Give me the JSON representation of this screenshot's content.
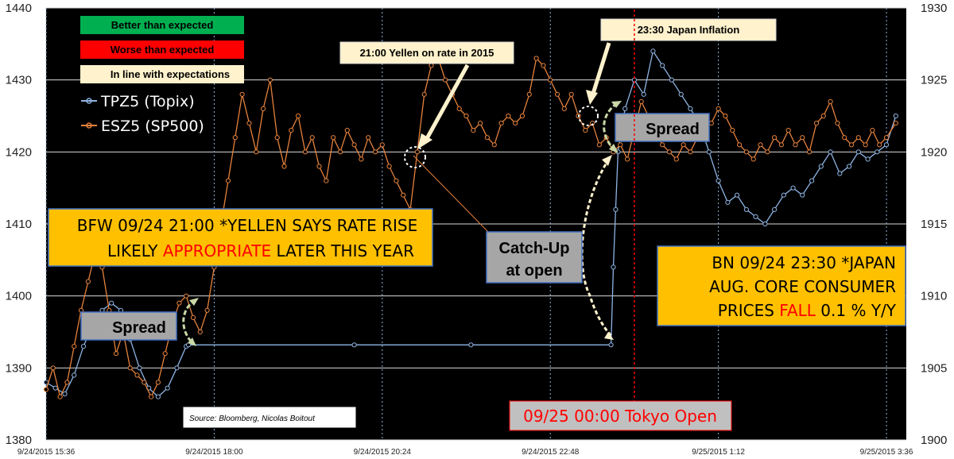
{
  "chart_data": {
    "type": "line",
    "left_axis": {
      "ticks": [
        1380,
        1390,
        1400,
        1410,
        1420,
        1430,
        1440
      ],
      "ylim": [
        1380,
        1440
      ]
    },
    "right_axis": {
      "ticks": [
        1900,
        1905,
        1910,
        1915,
        1920,
        1925,
        1930
      ],
      "ylim": [
        1900,
        1930
      ]
    },
    "x_tick_labels": [
      "9/24/2015 15:36",
      "9/24/2015 18:00",
      "9/24/2015 20:24",
      "9/24/2015 22:48",
      "9/25/2015 1:12",
      "9/25/2015 3:36"
    ],
    "x_range_minutes": [
      936,
      1656
    ],
    "x_tick_minutes": [
      936,
      1080,
      1224,
      1368,
      1512,
      1656
    ],
    "grid": true,
    "background": "#000000",
    "legend": {
      "placement": "top-left",
      "status_items": [
        {
          "label": "Better than expected",
          "color": "#00b050",
          "text_color": "#000000"
        },
        {
          "label": "Worse than expected",
          "color": "#ff0000",
          "text_color": "#000000"
        },
        {
          "label": "In line with expectations",
          "color": "#fff2cc",
          "text_color": "#000000"
        }
      ]
    },
    "series": [
      {
        "name": "TPZ5 (Topix)",
        "axis": "right",
        "color": "#8eb4e3",
        "points": [
          [
            936,
            1904
          ],
          [
            944,
            1903.6
          ],
          [
            952,
            1903.2
          ],
          [
            960,
            1904.5
          ],
          [
            968,
            1906.5
          ],
          [
            976,
            1908
          ],
          [
            984,
            1909
          ],
          [
            992,
            1909.5
          ],
          [
            1000,
            1909
          ],
          [
            1008,
            1907
          ],
          [
            1016,
            1905
          ],
          [
            1024,
            1903.6
          ],
          [
            1032,
            1903
          ],
          [
            1040,
            1903.6
          ],
          [
            1048,
            1905
          ],
          [
            1056,
            1906.5
          ],
          [
            1058,
            1906.6
          ],
          [
            1200,
            1906.6
          ],
          [
            1300,
            1906.6
          ],
          [
            1420,
            1906.6
          ],
          [
            1422,
            1912
          ],
          [
            1424,
            1916
          ],
          [
            1426,
            1920
          ],
          [
            1428,
            1921
          ],
          [
            1432,
            1923
          ],
          [
            1440,
            1925
          ],
          [
            1448,
            1924
          ],
          [
            1456,
            1927
          ],
          [
            1464,
            1926
          ],
          [
            1472,
            1925
          ],
          [
            1480,
            1924
          ],
          [
            1488,
            1923
          ],
          [
            1496,
            1922
          ],
          [
            1504,
            1920
          ],
          [
            1512,
            1918
          ],
          [
            1520,
            1916.5
          ],
          [
            1528,
            1917
          ],
          [
            1536,
            1916
          ],
          [
            1544,
            1915.5
          ],
          [
            1552,
            1915
          ],
          [
            1560,
            1916
          ],
          [
            1568,
            1917
          ],
          [
            1576,
            1917.5
          ],
          [
            1584,
            1917
          ],
          [
            1592,
            1918
          ],
          [
            1600,
            1919
          ],
          [
            1608,
            1920
          ],
          [
            1616,
            1918.5
          ],
          [
            1624,
            1919
          ],
          [
            1632,
            1920
          ],
          [
            1640,
            1919.5
          ],
          [
            1648,
            1920
          ],
          [
            1656,
            1920.5
          ],
          [
            1664,
            1922.5
          ]
        ]
      },
      {
        "name": "ESZ5 (SP500)",
        "axis": "left",
        "color": "#e5823c",
        "points": [
          [
            936,
            1387
          ],
          [
            942,
            1390
          ],
          [
            948,
            1386
          ],
          [
            954,
            1388
          ],
          [
            960,
            1393
          ],
          [
            966,
            1398
          ],
          [
            972,
            1402
          ],
          [
            978,
            1406
          ],
          [
            984,
            1404
          ],
          [
            990,
            1398
          ],
          [
            996,
            1392
          ],
          [
            1002,
            1395
          ],
          [
            1008,
            1390
          ],
          [
            1014,
            1389
          ],
          [
            1020,
            1388
          ],
          [
            1026,
            1386
          ],
          [
            1032,
            1388
          ],
          [
            1038,
            1392
          ],
          [
            1044,
            1396
          ],
          [
            1050,
            1399
          ],
          [
            1056,
            1400
          ],
          [
            1062,
            1397
          ],
          [
            1068,
            1395
          ],
          [
            1074,
            1398
          ],
          [
            1080,
            1404
          ],
          [
            1086,
            1410
          ],
          [
            1092,
            1416
          ],
          [
            1098,
            1422
          ],
          [
            1104,
            1428
          ],
          [
            1110,
            1424
          ],
          [
            1116,
            1420
          ],
          [
            1122,
            1426
          ],
          [
            1128,
            1430
          ],
          [
            1134,
            1422
          ],
          [
            1140,
            1418
          ],
          [
            1146,
            1423
          ],
          [
            1152,
            1425
          ],
          [
            1158,
            1420
          ],
          [
            1164,
            1422
          ],
          [
            1170,
            1418
          ],
          [
            1176,
            1416
          ],
          [
            1182,
            1422
          ],
          [
            1188,
            1420
          ],
          [
            1194,
            1423
          ],
          [
            1200,
            1421
          ],
          [
            1206,
            1419
          ],
          [
            1212,
            1422
          ],
          [
            1218,
            1420
          ],
          [
            1224,
            1421
          ],
          [
            1230,
            1418
          ],
          [
            1236,
            1416
          ],
          [
            1242,
            1414
          ],
          [
            1248,
            1412
          ],
          [
            1254,
            1420
          ],
          [
            1260,
            1428
          ],
          [
            1266,
            1432
          ],
          [
            1272,
            1433
          ],
          [
            1278,
            1430
          ],
          [
            1284,
            1428
          ],
          [
            1290,
            1426
          ],
          [
            1296,
            1425
          ],
          [
            1302,
            1423
          ],
          [
            1308,
            1424
          ],
          [
            1314,
            1422
          ],
          [
            1320,
            1421
          ],
          [
            1326,
            1424
          ],
          [
            1332,
            1425
          ],
          [
            1338,
            1424
          ],
          [
            1344,
            1425
          ],
          [
            1350,
            1428
          ],
          [
            1356,
            1433
          ],
          [
            1362,
            1432
          ],
          [
            1368,
            1430
          ],
          [
            1374,
            1428
          ],
          [
            1380,
            1426
          ],
          [
            1386,
            1428
          ],
          [
            1392,
            1425
          ],
          [
            1398,
            1423
          ],
          [
            1404,
            1424
          ],
          [
            1410,
            1421
          ],
          [
            1416,
            1422
          ],
          [
            1422,
            1420
          ],
          [
            1428,
            1421
          ],
          [
            1434,
            1419
          ],
          [
            1440,
            1423
          ],
          [
            1446,
            1427
          ],
          [
            1452,
            1425
          ],
          [
            1458,
            1423
          ],
          [
            1464,
            1421
          ],
          [
            1470,
            1420
          ],
          [
            1476,
            1419
          ],
          [
            1482,
            1421
          ],
          [
            1488,
            1420
          ],
          [
            1494,
            1422
          ],
          [
            1500,
            1425
          ],
          [
            1506,
            1424
          ],
          [
            1512,
            1426
          ],
          [
            1518,
            1425
          ],
          [
            1524,
            1423
          ],
          [
            1530,
            1421
          ],
          [
            1536,
            1420
          ],
          [
            1542,
            1419
          ],
          [
            1548,
            1421
          ],
          [
            1554,
            1420
          ],
          [
            1560,
            1422
          ],
          [
            1566,
            1421
          ],
          [
            1572,
            1423
          ],
          [
            1578,
            1421
          ],
          [
            1584,
            1422
          ],
          [
            1590,
            1420
          ],
          [
            1596,
            1424
          ],
          [
            1602,
            1425
          ],
          [
            1608,
            1427
          ],
          [
            1614,
            1424
          ],
          [
            1620,
            1422
          ],
          [
            1626,
            1421
          ],
          [
            1632,
            1422
          ],
          [
            1638,
            1421
          ],
          [
            1644,
            1423
          ],
          [
            1650,
            1421
          ],
          [
            1656,
            1422
          ],
          [
            1664,
            1424
          ]
        ]
      }
    ],
    "annotations": {
      "source": "Source: Bloomberg, Nicolas Boitout",
      "event_yellen": "21:00 Yellen on rate in 2015",
      "event_japan": "23:30 Japan Inflation",
      "spread_left": "Spread",
      "spread_right": "Spread",
      "catch_up_line1": "Catch-Up",
      "catch_up_line2": "at open",
      "yellen_line1": "BFW 09/24 21:00 *YELLEN SAYS RATE RISE",
      "yellen_line2_pre": "LIKELY ",
      "yellen_line2_highlight": "APPROPRIATE",
      "yellen_line2_post": " LATER THIS YEAR",
      "japan_line1": "BN 09/24 23:30 *JAPAN",
      "japan_line2": "AUG. CORE CONSUMER",
      "japan_line3_pre": "PRICES ",
      "japan_line3_highlight": "FALL",
      "japan_line3_post": " 0.1 % Y/Y",
      "tokyo_open": "09/25 00:00 Tokyo Open",
      "tokyo_open_minute": 1440
    }
  }
}
